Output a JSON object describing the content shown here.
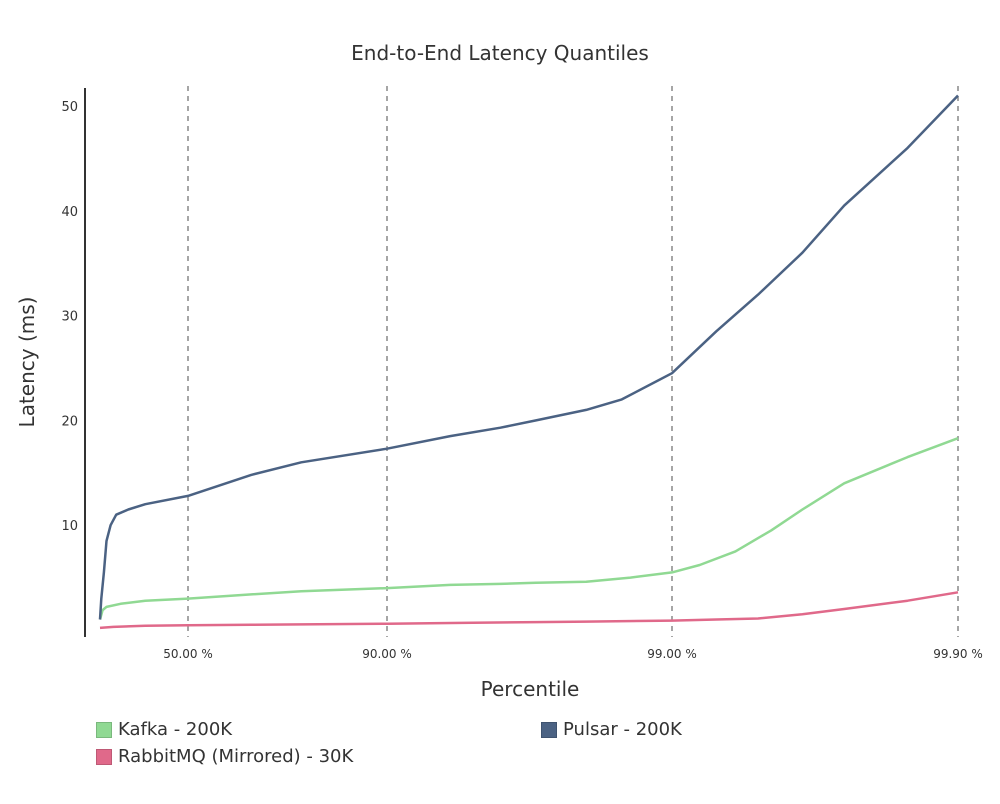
{
  "chart_data": {
    "type": "line",
    "title": "End-to-End Latency Quantiles",
    "xlabel": "Percentile",
    "ylabel": "Latency (ms)",
    "x_scale": "log-reciprocal (percentile)",
    "x_ticks": [
      {
        "value": 50.0,
        "label": "50.00 %"
      },
      {
        "value": 90.0,
        "label": "90.00 %"
      },
      {
        "value": 99.0,
        "label": "99.00 %"
      },
      {
        "value": 99.9,
        "label": "99.90 %"
      }
    ],
    "y_ticks": [
      {
        "value": 10,
        "label": "10"
      },
      {
        "value": 20,
        "label": "20"
      },
      {
        "value": 30,
        "label": "30"
      },
      {
        "value": 40,
        "label": "40"
      },
      {
        "value": 50,
        "label": "50"
      }
    ],
    "xlim": [
      0,
      99.9
    ],
    "ylim": [
      0,
      52
    ],
    "grid": "vertical dashed lines at x ticks",
    "legend_position": "bottom",
    "series": [
      {
        "name": "Kafka - 200K",
        "color": "#90d993",
        "points": [
          [
            0,
            1.0
          ],
          [
            2,
            1.9
          ],
          [
            5,
            2.2
          ],
          [
            15,
            2.5
          ],
          [
            30,
            2.8
          ],
          [
            50,
            3.0
          ],
          [
            70,
            3.4
          ],
          [
            80,
            3.7
          ],
          [
            90,
            4.0
          ],
          [
            94,
            4.3
          ],
          [
            96,
            4.4
          ],
          [
            97,
            4.5
          ],
          [
            98,
            4.6
          ],
          [
            98.6,
            5.0
          ],
          [
            99.0,
            5.5
          ],
          [
            99.2,
            6.2
          ],
          [
            99.4,
            7.5
          ],
          [
            99.55,
            9.5
          ],
          [
            99.65,
            11.5
          ],
          [
            99.75,
            14.0
          ],
          [
            99.85,
            16.5
          ],
          [
            99.9,
            18.3
          ]
        ]
      },
      {
        "name": "Pulsar - 200K",
        "color": "#4b6283",
        "points": [
          [
            0,
            1.0
          ],
          [
            1,
            3.0
          ],
          [
            3,
            5.5
          ],
          [
            5,
            8.5
          ],
          [
            8,
            10.0
          ],
          [
            12,
            11.0
          ],
          [
            20,
            11.5
          ],
          [
            30,
            12.0
          ],
          [
            50,
            12.8
          ],
          [
            70,
            14.8
          ],
          [
            80,
            16.0
          ],
          [
            90,
            17.3
          ],
          [
            94,
            18.5
          ],
          [
            96,
            19.3
          ],
          [
            97,
            20.0
          ],
          [
            98,
            21.0
          ],
          [
            98.5,
            22.0
          ],
          [
            99.0,
            24.5
          ],
          [
            99.3,
            28.5
          ],
          [
            99.5,
            32.0
          ],
          [
            99.65,
            36.0
          ],
          [
            99.75,
            40.5
          ],
          [
            99.85,
            46.0
          ],
          [
            99.9,
            51.0
          ]
        ]
      },
      {
        "name": "RabbitMQ (Mirrored) - 30K",
        "color": "#e0698a",
        "points": [
          [
            0,
            0.2
          ],
          [
            10,
            0.3
          ],
          [
            30,
            0.4
          ],
          [
            50,
            0.45
          ],
          [
            70,
            0.5
          ],
          [
            90,
            0.6
          ],
          [
            95,
            0.7
          ],
          [
            97,
            0.75
          ],
          [
            98,
            0.8
          ],
          [
            99.0,
            0.9
          ],
          [
            99.3,
            1.0
          ],
          [
            99.5,
            1.1
          ],
          [
            99.65,
            1.5
          ],
          [
            99.75,
            2.0
          ],
          [
            99.85,
            2.8
          ],
          [
            99.9,
            3.6
          ]
        ]
      }
    ]
  }
}
